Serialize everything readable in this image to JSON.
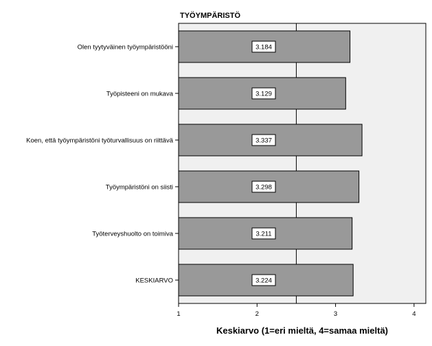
{
  "chart_data": {
    "type": "bar",
    "orientation": "horizontal",
    "title": "TYÖYMPÄRISTÖ",
    "categories": [
      "Olen tyytyväinen työympäristööni",
      "Työpisteeni on mukava",
      "Koen, että työympäristöni työturvallisuus on riittävä",
      "Työympäristöni on siisti",
      "Työterveyshuolto on toimiva",
      "KESKIARVO"
    ],
    "values": [
      3.184,
      3.129,
      3.337,
      3.298,
      3.211,
      3.224
    ],
    "data_labels": [
      "3.184",
      "3.129",
      "3.337",
      "3.298",
      "3.211",
      "3.224"
    ],
    "xlabel": "Keskiarvo (1=eri mieltä, 4=samaa mieltä)",
    "ylabel": "",
    "xlim": [
      1,
      4.15
    ],
    "xticks": [
      1,
      2,
      3,
      4
    ],
    "xtick_labels": [
      "1",
      "2",
      "3",
      "4"
    ],
    "reference_line": 2.5,
    "colors": {
      "plot_background": "#f0f0f0",
      "bar_fill": "#999999",
      "bar_stroke": "#000000",
      "label_box": "#ffffff"
    }
  }
}
